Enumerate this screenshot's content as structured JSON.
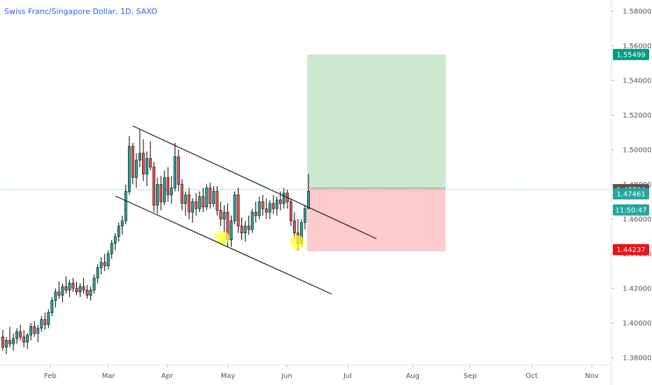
{
  "chart_data": {
    "type": "candlestick",
    "title": "Swiss Franc/Singapore Dollar, 1D, SAXO",
    "y_ticks": [
      "1.58000",
      "1.56000",
      "1.54000",
      "1.52000",
      "1.50000",
      "1.48000",
      "1.46000",
      "1.44000",
      "1.42000",
      "1.40000",
      "1.38000"
    ],
    "y_tick_values": [
      1.58,
      1.56,
      1.54,
      1.52,
      1.5,
      1.48,
      1.46,
      1.44,
      1.42,
      1.4,
      1.38
    ],
    "x_ticks": [
      "Feb",
      "Mar",
      "Apr",
      "May",
      "Jun",
      "Jul",
      "Aug",
      "Sep",
      "Oct",
      "Nov"
    ],
    "ylim": [
      1.376,
      1.592
    ],
    "price_labels": [
      {
        "value": "1.55499",
        "color": "#089981"
      },
      {
        "value": "1.47704",
        "color": "#555555"
      },
      {
        "value": "1.47461",
        "color": "#26a69a"
      },
      {
        "value": "11:50:47",
        "color": "#26a69a"
      },
      {
        "value": "1.44237",
        "color": "#ee1111"
      }
    ],
    "current_price": 1.477,
    "position": {
      "entry": 1.478,
      "target": 1.555,
      "stop": 1.4414
    },
    "colors": {
      "up": "#26a69a",
      "down": "#ef5350",
      "target_zone": "#cbe9cf",
      "stop_zone": "#fdcbcb",
      "highlight": "#ffff33"
    },
    "candles": [
      [
        1.392,
        1.396,
        1.384,
        1.386
      ],
      [
        1.386,
        1.392,
        1.382,
        1.39
      ],
      [
        1.39,
        1.398,
        1.386,
        1.388
      ],
      [
        1.388,
        1.394,
        1.384,
        1.391
      ],
      [
        1.391,
        1.397,
        1.388,
        1.395
      ],
      [
        1.395,
        1.399,
        1.39,
        1.392
      ],
      [
        1.392,
        1.396,
        1.386,
        1.389
      ],
      [
        1.389,
        1.394,
        1.385,
        1.393
      ],
      [
        1.393,
        1.4,
        1.39,
        1.398
      ],
      [
        1.398,
        1.401,
        1.392,
        1.394
      ],
      [
        1.394,
        1.399,
        1.389,
        1.397
      ],
      [
        1.397,
        1.404,
        1.395,
        1.402
      ],
      [
        1.402,
        1.406,
        1.396,
        1.399
      ],
      [
        1.399,
        1.408,
        1.397,
        1.406
      ],
      [
        1.406,
        1.415,
        1.404,
        1.413
      ],
      [
        1.413,
        1.42,
        1.409,
        1.418
      ],
      [
        1.418,
        1.424,
        1.414,
        1.416
      ],
      [
        1.416,
        1.423,
        1.412,
        1.421
      ],
      [
        1.421,
        1.427,
        1.417,
        1.419
      ],
      [
        1.419,
        1.425,
        1.415,
        1.423
      ],
      [
        1.423,
        1.426,
        1.418,
        1.42
      ],
      [
        1.42,
        1.424,
        1.416,
        1.418
      ],
      [
        1.418,
        1.423,
        1.415,
        1.421
      ],
      [
        1.421,
        1.426,
        1.417,
        1.419
      ],
      [
        1.419,
        1.422,
        1.414,
        1.416
      ],
      [
        1.416,
        1.421,
        1.413,
        1.419
      ],
      [
        1.419,
        1.428,
        1.417,
        1.426
      ],
      [
        1.426,
        1.434,
        1.423,
        1.432
      ],
      [
        1.432,
        1.438,
        1.428,
        1.435
      ],
      [
        1.435,
        1.44,
        1.43,
        1.433
      ],
      [
        1.433,
        1.442,
        1.431,
        1.44
      ],
      [
        1.44,
        1.448,
        1.437,
        1.446
      ],
      [
        1.446,
        1.452,
        1.442,
        1.45
      ],
      [
        1.45,
        1.458,
        1.447,
        1.456
      ],
      [
        1.456,
        1.462,
        1.451,
        1.459
      ],
      [
        1.459,
        1.48,
        1.457,
        1.476
      ],
      [
        1.476,
        1.508,
        1.474,
        1.502
      ],
      [
        1.502,
        1.504,
        1.48,
        1.484
      ],
      [
        1.484,
        1.498,
        1.478,
        1.494
      ],
      [
        1.494,
        1.512,
        1.49,
        1.498
      ],
      [
        1.498,
        1.506,
        1.482,
        1.486
      ],
      [
        1.486,
        1.499,
        1.479,
        1.495
      ],
      [
        1.495,
        1.505,
        1.488,
        1.49
      ],
      [
        1.49,
        1.493,
        1.464,
        1.468
      ],
      [
        1.468,
        1.484,
        1.463,
        1.48
      ],
      [
        1.48,
        1.485,
        1.465,
        1.47
      ],
      [
        1.47,
        1.488,
        1.468,
        1.484
      ],
      [
        1.484,
        1.49,
        1.47,
        1.474
      ],
      [
        1.474,
        1.485,
        1.469,
        1.478
      ],
      [
        1.478,
        1.504,
        1.476,
        1.496
      ],
      [
        1.496,
        1.5,
        1.476,
        1.48
      ],
      [
        1.48,
        1.483,
        1.465,
        1.469
      ],
      [
        1.469,
        1.476,
        1.462,
        1.474
      ],
      [
        1.474,
        1.478,
        1.46,
        1.464
      ],
      [
        1.464,
        1.472,
        1.458,
        1.47
      ],
      [
        1.47,
        1.475,
        1.462,
        1.466
      ],
      [
        1.466,
        1.476,
        1.464,
        1.473
      ],
      [
        1.473,
        1.478,
        1.464,
        1.467
      ],
      [
        1.467,
        1.48,
        1.465,
        1.478
      ],
      [
        1.478,
        1.481,
        1.466,
        1.469
      ],
      [
        1.469,
        1.479,
        1.467,
        1.476
      ],
      [
        1.476,
        1.479,
        1.462,
        1.465
      ],
      [
        1.465,
        1.47,
        1.456,
        1.46
      ],
      [
        1.46,
        1.468,
        1.452,
        1.464
      ],
      [
        1.464,
        1.469,
        1.444,
        1.448
      ],
      [
        1.448,
        1.462,
        1.444,
        1.459
      ],
      [
        1.459,
        1.476,
        1.457,
        1.474
      ],
      [
        1.474,
        1.478,
        1.452,
        1.456
      ],
      [
        1.456,
        1.461,
        1.448,
        1.452
      ],
      [
        1.452,
        1.459,
        1.447,
        1.456
      ],
      [
        1.456,
        1.462,
        1.451,
        1.454
      ],
      [
        1.454,
        1.466,
        1.452,
        1.464
      ],
      [
        1.464,
        1.47,
        1.458,
        1.462
      ],
      [
        1.462,
        1.473,
        1.46,
        1.47
      ],
      [
        1.47,
        1.474,
        1.462,
        1.466
      ],
      [
        1.466,
        1.472,
        1.46,
        1.464
      ],
      [
        1.464,
        1.471,
        1.46,
        1.469
      ],
      [
        1.469,
        1.474,
        1.463,
        1.466
      ],
      [
        1.466,
        1.473,
        1.462,
        1.471
      ],
      [
        1.471,
        1.476,
        1.465,
        1.469
      ],
      [
        1.469,
        1.478,
        1.466,
        1.475
      ],
      [
        1.475,
        1.477,
        1.466,
        1.47
      ],
      [
        1.47,
        1.472,
        1.456,
        1.459
      ],
      [
        1.459,
        1.464,
        1.448,
        1.452
      ],
      [
        1.452,
        1.46,
        1.442,
        1.446
      ],
      [
        1.446,
        1.46,
        1.444,
        1.458
      ],
      [
        1.458,
        1.468,
        1.454,
        1.466
      ],
      [
        1.466,
        1.486,
        1.466,
        1.476
      ]
    ]
  }
}
